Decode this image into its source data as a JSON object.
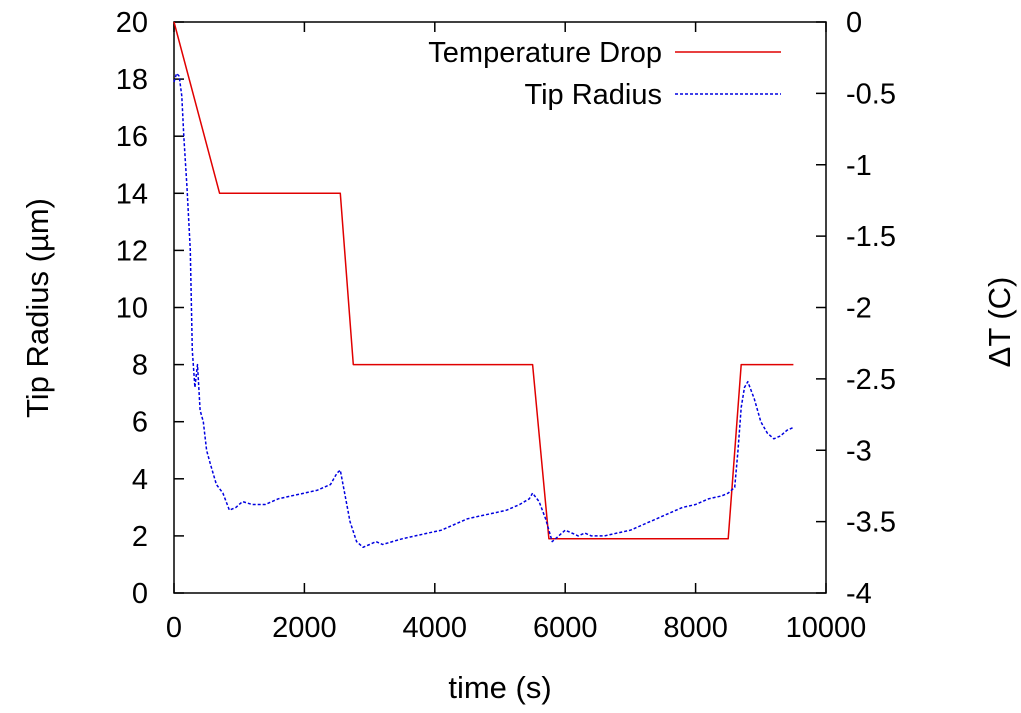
{
  "chart_data": {
    "type": "line",
    "title": "",
    "xlabel": "time (s)",
    "ylabel": "Tip Radius (µm)",
    "y2label": "ΔT (C)",
    "xlim": [
      0,
      10000
    ],
    "ylim": [
      0,
      20
    ],
    "y2lim": [
      -4,
      0
    ],
    "grid": false,
    "legend_position": "top-right",
    "x_ticks": [
      "0",
      "2000",
      "4000",
      "6000",
      "8000",
      "10000"
    ],
    "y_ticks": [
      "0",
      "2",
      "4",
      "6",
      "8",
      "10",
      "12",
      "14",
      "16",
      "18",
      "20"
    ],
    "y2_ticks": [
      "0",
      "-0.5",
      "-1",
      "-1.5",
      "-2",
      "-2.5",
      "-3",
      "-3.5",
      "-4"
    ],
    "series": [
      {
        "name": "Temperature Drop",
        "axis": "right",
        "color": "#e00000",
        "style": "solid",
        "x": [
          0,
          700,
          2550,
          2750,
          5500,
          5750,
          8500,
          8700,
          9500
        ],
        "y": [
          0,
          -1.2,
          -1.2,
          -2.4,
          -2.4,
          -3.62,
          -3.62,
          -2.4,
          -2.4
        ]
      },
      {
        "name": "Tip Radius",
        "axis": "left",
        "color": "#0000e0",
        "style": "dashed",
        "x": [
          0,
          40,
          80,
          120,
          150,
          200,
          250,
          280,
          320,
          360,
          400,
          450,
          500,
          560,
          650,
          750,
          850,
          950,
          1050,
          1200,
          1400,
          1600,
          1800,
          2000,
          2200,
          2400,
          2500,
          2550,
          2650,
          2700,
          2800,
          2900,
          3000,
          3100,
          3200,
          3350,
          3500,
          3700,
          3900,
          4100,
          4300,
          4500,
          4700,
          4900,
          5100,
          5300,
          5450,
          5500,
          5600,
          5700,
          5800,
          5900,
          6000,
          6100,
          6200,
          6300,
          6400,
          6600,
          6800,
          7000,
          7200,
          7400,
          7600,
          7800,
          8000,
          8200,
          8400,
          8500,
          8600,
          8650,
          8700,
          8750,
          8800,
          8900,
          9000,
          9100,
          9200,
          9300,
          9400,
          9500
        ],
        "y": [
          17.9,
          18.2,
          18.1,
          17.4,
          16.0,
          14.2,
          12.0,
          8.5,
          7.2,
          8.0,
          6.4,
          6.0,
          5.0,
          4.5,
          3.8,
          3.5,
          2.9,
          3.0,
          3.2,
          3.1,
          3.1,
          3.3,
          3.4,
          3.5,
          3.6,
          3.8,
          4.2,
          4.3,
          3.1,
          2.5,
          1.8,
          1.6,
          1.7,
          1.8,
          1.7,
          1.8,
          1.9,
          2.0,
          2.1,
          2.2,
          2.4,
          2.6,
          2.7,
          2.8,
          2.9,
          3.1,
          3.3,
          3.5,
          3.2,
          2.6,
          1.8,
          2.0,
          2.2,
          2.1,
          2.0,
          2.1,
          2.0,
          2.0,
          2.1,
          2.2,
          2.4,
          2.6,
          2.8,
          3.0,
          3.1,
          3.3,
          3.4,
          3.5,
          3.7,
          5.0,
          6.5,
          7.2,
          7.4,
          6.8,
          6.0,
          5.6,
          5.4,
          5.5,
          5.7,
          5.8
        ]
      }
    ]
  }
}
